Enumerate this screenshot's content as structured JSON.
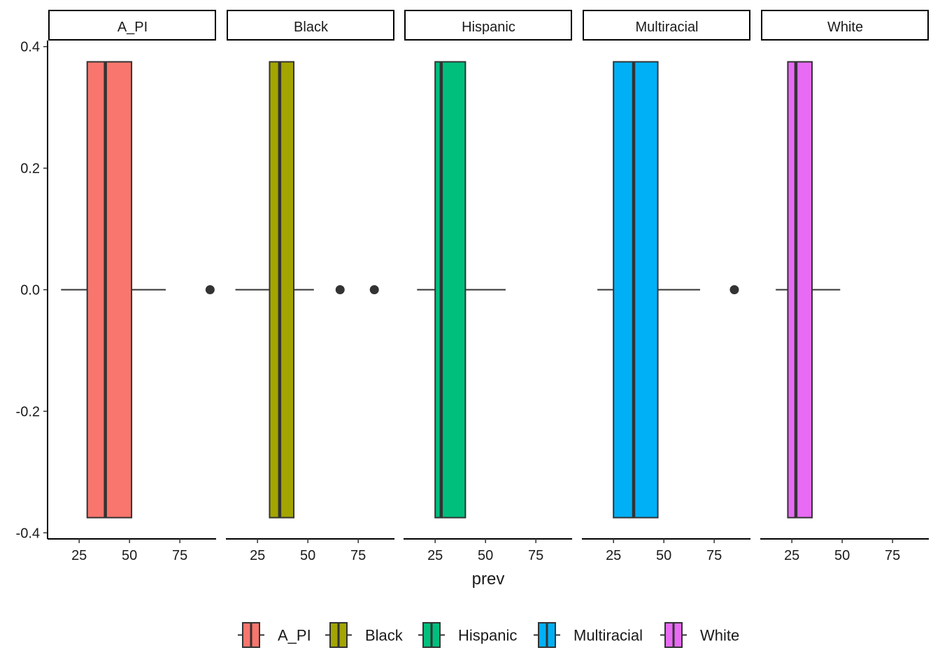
{
  "chart_data": {
    "type": "boxplot",
    "faceted_by": "group",
    "xlabel": "prev",
    "ylabel": "",
    "xlim": [
      10,
      93
    ],
    "ylim": [
      -0.41,
      0.41
    ],
    "x_ticks": [
      25,
      50,
      75
    ],
    "y_ticks": [
      0.4,
      0.2,
      0.0,
      -0.2,
      -0.4
    ],
    "y_tick_labels": [
      "0.4",
      "0.2",
      "0.0",
      "-0.2",
      "-0.4"
    ],
    "box_y_range": [
      -0.375,
      0.375
    ],
    "legend_position": "bottom",
    "panels": [
      {
        "name": "A_PI",
        "color": "#F8766D",
        "whisker_low": 16,
        "q1": 29,
        "median": 38,
        "q3": 51,
        "whisker_high": 68,
        "outliers": [
          90
        ]
      },
      {
        "name": "Black",
        "color": "#A3A500",
        "whisker_low": 14,
        "q1": 31,
        "median": 36,
        "q3": 43,
        "whisker_high": 53,
        "outliers": [
          66,
          83
        ]
      },
      {
        "name": "Hispanic",
        "color": "#00BF7D",
        "whisker_low": 16,
        "q1": 25,
        "median": 28,
        "q3": 40,
        "whisker_high": 60,
        "outliers": []
      },
      {
        "name": "Multiracial",
        "color": "#00B0F6",
        "whisker_low": 17,
        "q1": 25,
        "median": 35,
        "q3": 47,
        "whisker_high": 68,
        "outliers": [
          85
        ]
      },
      {
        "name": "White",
        "color": "#E76BF3",
        "whisker_low": 17,
        "q1": 23,
        "median": 27,
        "q3": 35,
        "whisker_high": 49,
        "outliers": []
      }
    ]
  }
}
